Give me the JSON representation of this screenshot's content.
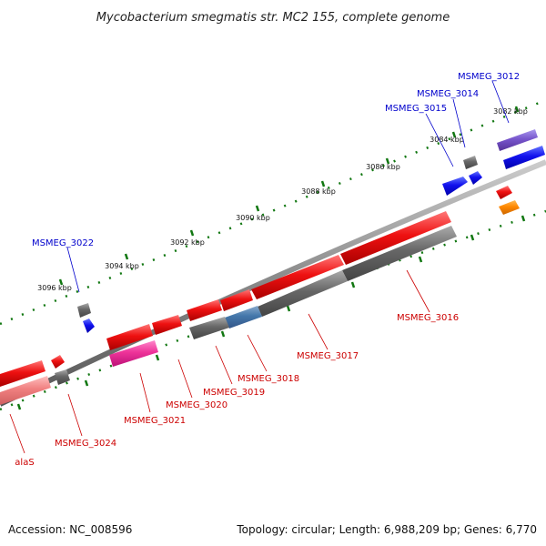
{
  "title": "Mycobacterium smegmatis str. MC2 155, complete genome",
  "ruler": [
    "3082 kbp",
    "3084 kbp",
    "3086 kbp",
    "3088 kbp",
    "3090 kbp",
    "3092 kbp",
    "3094 kbp",
    "3096 kbp"
  ],
  "genes_top": [
    "MSMEG_3012",
    "MSMEG_3014",
    "MSMEG_3015",
    "MSMEG_3022"
  ],
  "genes_bottom": [
    "MSMEG_3016",
    "MSMEG_3017",
    "MSMEG_3018",
    "MSMEG_3019",
    "MSMEG_3020",
    "MSMEG_3021",
    "MSMEG_3024",
    "alaS"
  ],
  "footer": {
    "accession": "Accession: NC_008596",
    "summary": "Topology: circular; Length: 6,988,209 bp; Genes: 6,770"
  },
  "colors": {
    "gene_red": "#ee1111",
    "gene_gray": "#666666",
    "gene_blue": "#1111ee",
    "gene_purple": "#7755cc",
    "gene_orange": "#ff8800",
    "gene_pink": "#ee3399",
    "gene_light_red": "#f08080",
    "gene_steel_blue": "#4477aa",
    "backbone": "#888888",
    "tick_green": "#117711"
  }
}
